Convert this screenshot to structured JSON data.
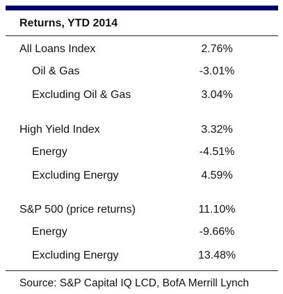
{
  "table": {
    "title": "Returns, YTD 2014",
    "groups": [
      {
        "rows": [
          [
            "All Loans Index",
            "2.76%"
          ],
          [
            "Oil & Gas",
            "-3.01%"
          ],
          [
            "Excluding Oil & Gas",
            "3.04%"
          ]
        ]
      },
      {
        "rows": [
          [
            "High Yield Index",
            "3.32%"
          ],
          [
            "Energy",
            "-4.51%"
          ],
          [
            "Excluding Energy",
            "4.59%"
          ]
        ]
      },
      {
        "rows": [
          [
            "S&P 500 (price returns)",
            "11.10%"
          ],
          [
            "Energy",
            "-9.66%"
          ],
          [
            "Excluding Energy",
            "13.48%"
          ]
        ]
      }
    ],
    "source": "Source: S&P Capital IQ LCD, BofA Merrill Lynch"
  }
}
